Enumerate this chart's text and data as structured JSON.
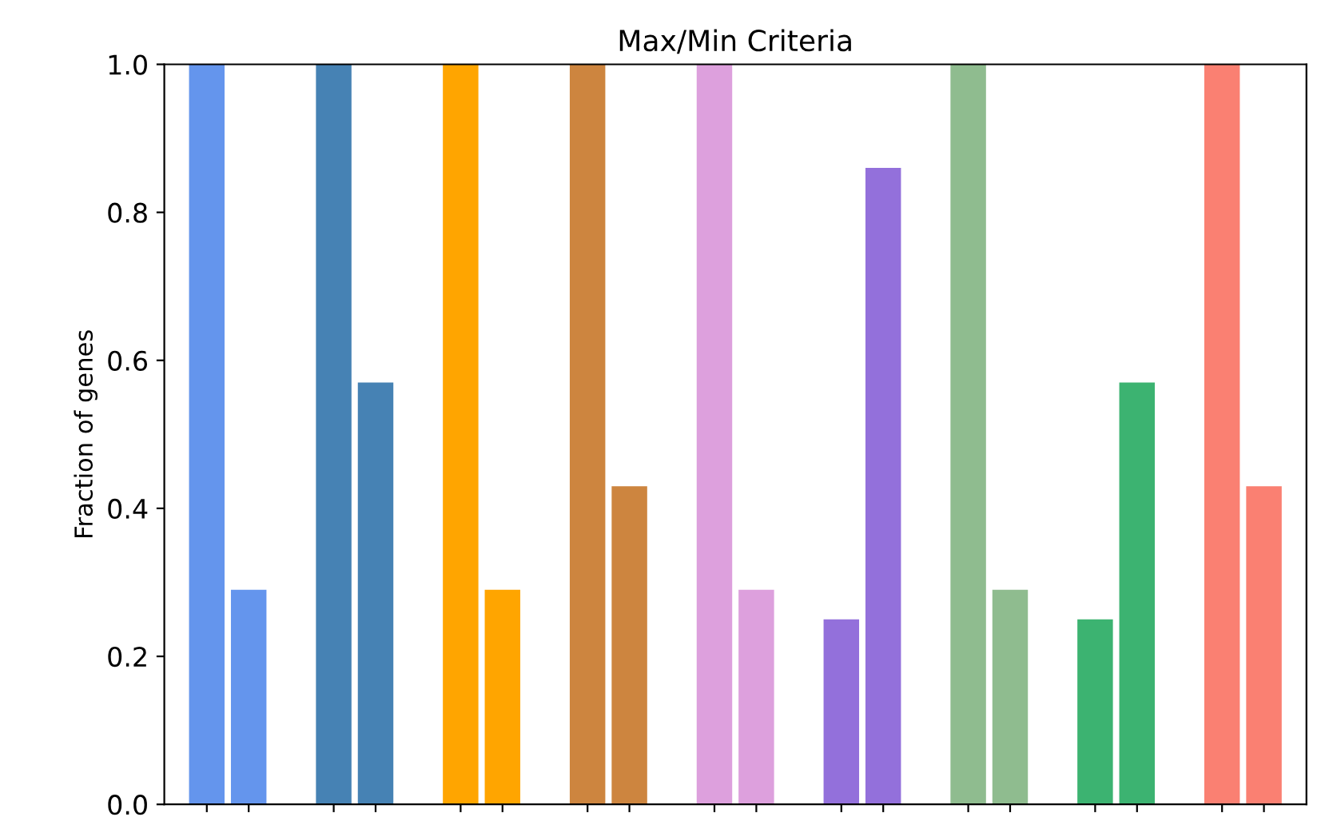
{
  "chart_data": {
    "type": "bar",
    "title": "Max/Min Criteria",
    "ylabel": "Fraction of genes",
    "categories": [
      null,
      null,
      null,
      null,
      null,
      null,
      null,
      null,
      null
    ],
    "series": [
      {
        "values": [
          1.0,
          1.0,
          1.0,
          1.0,
          1.0,
          0.25,
          1.0,
          0.25,
          1.0
        ],
        "colors": [
          "#6495ed",
          "#4682b4",
          "#ffa500",
          "#cd853f",
          "#dda0dd",
          "#9370db",
          "#8fbc8f",
          "#3cb371",
          "#fa8072"
        ]
      },
      {
        "values": [
          0.29,
          0.57,
          0.29,
          0.43,
          0.29,
          0.86,
          0.29,
          0.57,
          0.43
        ],
        "colors": [
          "#6495ed",
          "#4682b4",
          "#ffa500",
          "#cd853f",
          "#dda0dd",
          "#9370db",
          "#8fbc8f",
          "#3cb371",
          "#fa8072"
        ]
      }
    ],
    "ylim": [
      0,
      1.0
    ],
    "yticks": [
      {
        "value": 0,
        "label": "0.0"
      },
      0.2,
      0.4,
      0.6,
      0.8,
      {
        "value": 1,
        "label": "1.0"
      }
    ],
    "tick_labels": "y",
    "grid": false
  }
}
